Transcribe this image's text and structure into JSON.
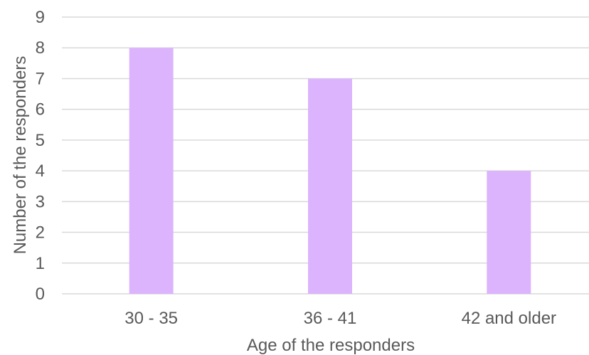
{
  "colors": {
    "bar": "#dcb4fd",
    "grid": "#d9d9d9",
    "text": "#595959"
  },
  "chart_data": {
    "type": "bar",
    "title": "",
    "xlabel": "Age of the responders",
    "ylabel": "Number of the responders",
    "categories": [
      "30 - 35",
      "36 - 41",
      "42 and older"
    ],
    "values": [
      8,
      7,
      4
    ],
    "ylim": [
      0,
      9
    ],
    "yticks": [
      0,
      1,
      2,
      3,
      4,
      5,
      6,
      7,
      8,
      9
    ],
    "grid": true,
    "legend": "none"
  }
}
